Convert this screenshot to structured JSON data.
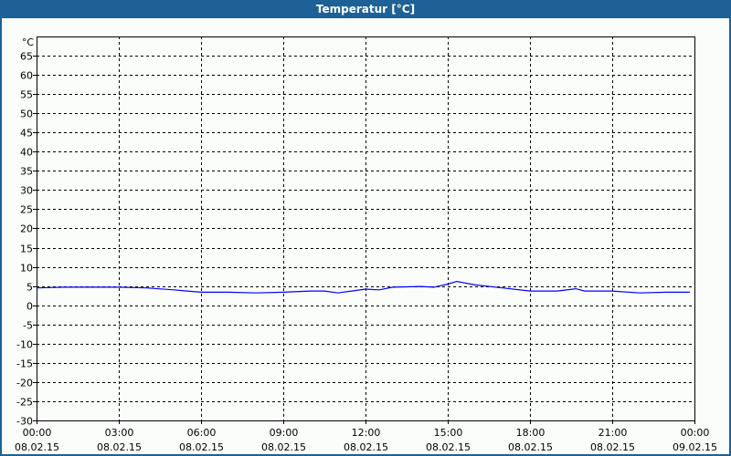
{
  "window": {
    "title": "Temperatur [°C]"
  },
  "chart_data": {
    "type": "line",
    "title": "Temperatur [°C]",
    "ylabel": "°C",
    "ylim": [
      -30,
      70
    ],
    "yticks": [
      65,
      60,
      55,
      50,
      45,
      40,
      35,
      30,
      25,
      20,
      15,
      10,
      5,
      0,
      -5,
      -10,
      -15,
      -20,
      -25,
      -30
    ],
    "xlim_hours": [
      0,
      24
    ],
    "xticks": [
      {
        "time": "00:00",
        "date": "08.02.15"
      },
      {
        "time": "03:00",
        "date": "08.02.15"
      },
      {
        "time": "06:00",
        "date": "08.02.15"
      },
      {
        "time": "09:00",
        "date": "08.02.15"
      },
      {
        "time": "12:00",
        "date": "08.02.15"
      },
      {
        "time": "15:00",
        "date": "08.02.15"
      },
      {
        "time": "18:00",
        "date": "08.02.15"
      },
      {
        "time": "21:00",
        "date": "08.02.15"
      },
      {
        "time": "00:00",
        "date": "09.02.15"
      }
    ],
    "grid": true,
    "series": [
      {
        "color": "#0000ff",
        "x": [
          0,
          1,
          3,
          4,
          5,
          5.5,
          6,
          7,
          8,
          9,
          10,
          10.5,
          11,
          11.5,
          12,
          12.5,
          13,
          14,
          14.5,
          15,
          15.33,
          16,
          17,
          18,
          19,
          19.67,
          20,
          21,
          22,
          23,
          23.83
        ],
        "y": [
          4.5,
          4.7,
          4.7,
          4.5,
          4.0,
          3.7,
          3.4,
          3.4,
          3.2,
          3.4,
          3.7,
          3.7,
          3.2,
          3.7,
          4.2,
          4.0,
          4.7,
          4.9,
          4.7,
          5.5,
          6.2,
          5.3,
          4.5,
          3.7,
          3.7,
          4.3,
          3.7,
          3.7,
          3.2,
          3.4,
          3.4
        ]
      }
    ]
  }
}
